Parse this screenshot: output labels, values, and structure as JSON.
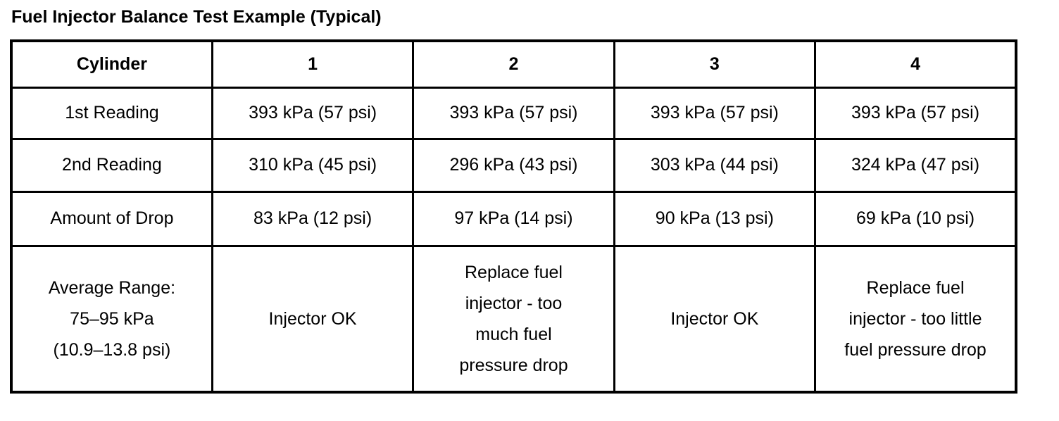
{
  "title": "Fuel Injector Balance Test Example (Typical)",
  "colors": {
    "background": "#ffffff",
    "text": "#000000",
    "border": "#000000"
  },
  "table": {
    "columns": [
      "Cylinder",
      "1",
      "2",
      "3",
      "4"
    ],
    "rows": [
      {
        "label": "1st Reading",
        "cells": [
          "393 kPa (57 psi)",
          "393 kPa (57 psi)",
          "393 kPa (57 psi)",
          "393 kPa (57 psi)"
        ]
      },
      {
        "label": "2nd Reading",
        "cells": [
          "310 kPa (45 psi)",
          "296 kPa (43 psi)",
          "303 kPa (44 psi)",
          "324 kPa (47 psi)"
        ]
      },
      {
        "label": "Amount of Drop",
        "cells": [
          "83 kPa (12 psi)",
          "97 kPa (14 psi)",
          "90 kPa (13 psi)",
          "69 kPa (10 psi)"
        ]
      },
      {
        "label": "Average Range:\n75–95 kPa\n(10.9–13.8 psi)",
        "cells": [
          "Injector OK",
          "Replace fuel\ninjector - too\nmuch fuel\npressure drop",
          "Injector OK",
          "Replace fuel\ninjector - too little\nfuel pressure drop"
        ]
      }
    ]
  }
}
